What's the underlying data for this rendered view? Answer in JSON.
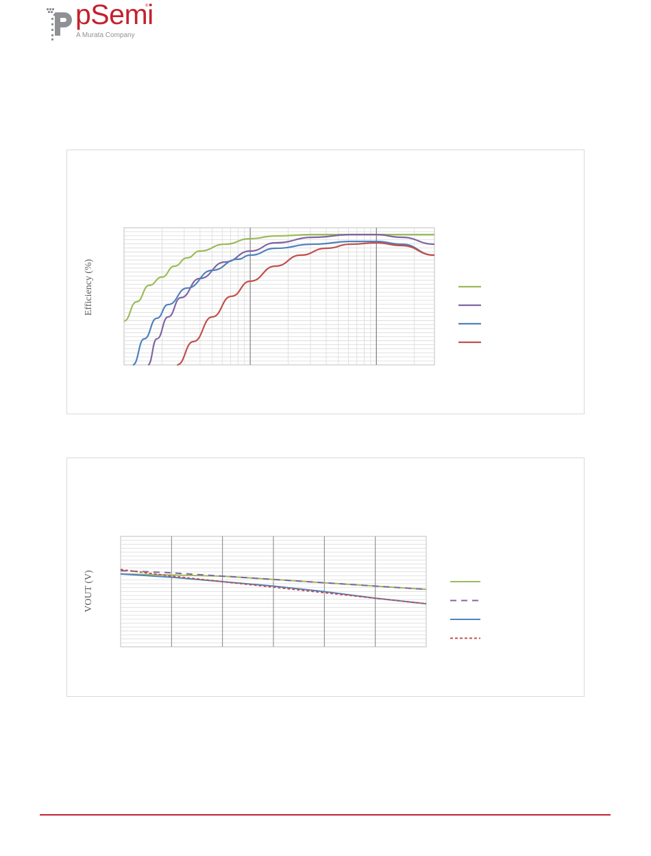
{
  "brand": {
    "name": "pSemi",
    "tagline": "A Murata Company",
    "color": "#c4212e",
    "gray": "#8f9194"
  },
  "chart_data": [
    {
      "type": "line",
      "ylabel": "Efficiency (%)",
      "xscale": "log",
      "xrange_decades": 2.46,
      "grid": true,
      "legend_position": "right",
      "series": [
        {
          "color": "#9bbb59",
          "dash": "solid",
          "x": [
            0.0,
            0.1,
            0.2,
            0.3,
            0.4,
            0.5,
            0.6,
            0.8,
            1.0,
            1.2,
            1.5,
            1.8,
            2.1,
            2.46
          ],
          "y": [
            0.32,
            0.46,
            0.58,
            0.64,
            0.72,
            0.78,
            0.83,
            0.88,
            0.92,
            0.94,
            0.95,
            0.95,
            0.95,
            0.95
          ]
        },
        {
          "color": "#8064a2",
          "dash": "solid",
          "x": [
            0.19,
            0.26,
            0.35,
            0.45,
            0.6,
            0.8,
            1.0,
            1.2,
            1.5,
            1.8,
            2.0,
            2.2,
            2.46
          ],
          "y": [
            0.0,
            0.19,
            0.35,
            0.49,
            0.63,
            0.75,
            0.83,
            0.89,
            0.93,
            0.95,
            0.95,
            0.93,
            0.88
          ]
        },
        {
          "color": "#4f81bd",
          "dash": "solid",
          "x": [
            0.07,
            0.16,
            0.26,
            0.35,
            0.5,
            0.7,
            0.9,
            1.0,
            1.2,
            1.5,
            1.8,
            2.0,
            2.2,
            2.46
          ],
          "y": [
            0.0,
            0.19,
            0.34,
            0.44,
            0.56,
            0.69,
            0.77,
            0.8,
            0.85,
            0.88,
            0.9,
            0.9,
            0.88,
            0.8
          ]
        },
        {
          "color": "#c0504d",
          "dash": "solid",
          "x": [
            0.42,
            0.55,
            0.7,
            0.85,
            1.0,
            1.2,
            1.4,
            1.6,
            1.8,
            2.0,
            2.2,
            2.46
          ],
          "y": [
            0.0,
            0.17,
            0.35,
            0.5,
            0.61,
            0.72,
            0.8,
            0.85,
            0.88,
            0.89,
            0.87,
            0.8
          ]
        }
      ]
    },
    {
      "type": "line",
      "ylabel": "VOUT (V)",
      "x_gridlines": 6,
      "grid": true,
      "legend_position": "right",
      "series": [
        {
          "color": "#9bbb59",
          "dash": "solid",
          "x": [
            0,
            1,
            2,
            3,
            4,
            5,
            6
          ],
          "y": [
            0.66,
            0.65,
            0.64,
            0.61,
            0.58,
            0.55,
            0.52
          ]
        },
        {
          "color": "#8064a2",
          "dash": "long-dash",
          "x": [
            0,
            1,
            2,
            3,
            4,
            5,
            6
          ],
          "y": [
            0.69,
            0.67,
            0.64,
            0.61,
            0.58,
            0.55,
            0.52
          ]
        },
        {
          "color": "#4f81bd",
          "dash": "solid",
          "x": [
            0,
            1,
            2,
            3,
            4,
            5,
            6
          ],
          "y": [
            0.66,
            0.63,
            0.59,
            0.55,
            0.5,
            0.44,
            0.39
          ]
        },
        {
          "color": "#c0504d",
          "dash": "short-dash",
          "x": [
            0,
            1,
            2,
            3,
            4,
            5,
            6
          ],
          "y": [
            0.7,
            0.64,
            0.59,
            0.54,
            0.49,
            0.44,
            0.39
          ]
        }
      ]
    }
  ]
}
